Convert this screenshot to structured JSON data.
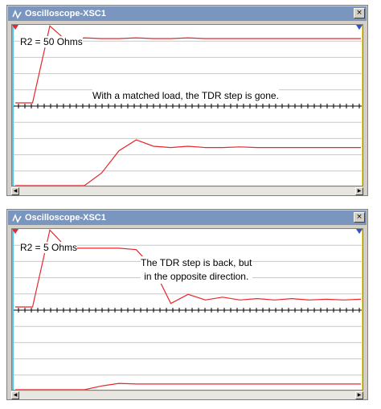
{
  "windows": [
    {
      "title": "Oscilloscope-XSC1",
      "close_label": "×",
      "scroll_left": "◀",
      "scroll_right": "▶",
      "label": "R2 = 50 Ohms",
      "annotation_lines": [
        "With a matched load, the TDR step is gone."
      ],
      "colors": {
        "trace": "#e8262b",
        "cursor1": "#4cc8f0",
        "cursor2": "#f0e050",
        "grid": "#c8c8c8",
        "axis": "#000000"
      },
      "chart_data": {
        "type": "line",
        "series": [
          {
            "values_ch_a": [
              0.0,
              0.0,
              1.1,
              0.88,
              0.93,
              0.92,
              0.92,
              0.93,
              0.92,
              0.92,
              0.93,
              0.92,
              0.92,
              0.92,
              0.92,
              0.92,
              0.92,
              0.92,
              0.92,
              0.92,
              0.92
            ]
          },
          {
            "values_ch_b": [
              0.0,
              0.0,
              0.0,
              0.0,
              0.0,
              0.2,
              0.55,
              0.72,
              0.62,
              0.6,
              0.62,
              0.6,
              0.6,
              0.61,
              0.6,
              0.6,
              0.6,
              0.6,
              0.6,
              0.6,
              0.6
            ]
          }
        ]
      }
    },
    {
      "title": "Oscilloscope-XSC1",
      "close_label": "×",
      "scroll_left": "◀",
      "scroll_right": "▶",
      "label": "R2 = 5 Ohms",
      "annotation_lines": [
        "The TDR step is back, but",
        "in the opposite direction."
      ],
      "colors": {
        "trace": "#e8262b",
        "cursor1": "#4cc8f0",
        "cursor2": "#f0e050",
        "grid": "#c8c8c8",
        "axis": "#000000"
      },
      "chart_data": {
        "type": "line",
        "series": [
          {
            "values_ch_a": [
              0.0,
              0.0,
              1.1,
              0.84,
              0.84,
              0.84,
              0.84,
              0.82,
              0.55,
              0.05,
              0.18,
              0.1,
              0.14,
              0.1,
              0.12,
              0.1,
              0.12,
              0.1,
              0.11,
              0.1,
              0.11
            ]
          },
          {
            "values_ch_b": [
              0.0,
              0.0,
              0.0,
              0.0,
              0.0,
              0.06,
              0.1,
              0.09,
              0.09,
              0.09,
              0.09,
              0.09,
              0.09,
              0.09,
              0.09,
              0.09,
              0.09,
              0.09,
              0.09,
              0.09,
              0.09
            ]
          }
        ]
      }
    }
  ]
}
